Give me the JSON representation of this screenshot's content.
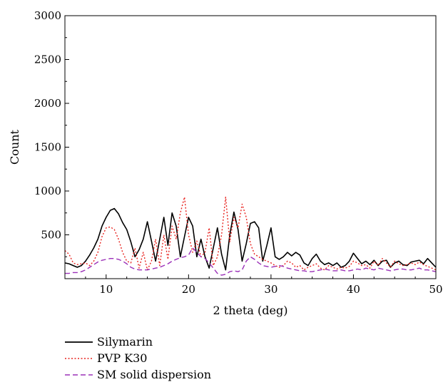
{
  "chart_data": {
    "type": "line",
    "xlabel": "2 theta (deg)",
    "ylabel": "Count",
    "xlim": [
      5,
      50
    ],
    "ylim": [
      0,
      3000
    ],
    "x_ticks": [
      10,
      20,
      30,
      40,
      50
    ],
    "y_ticks": [
      500,
      1000,
      1500,
      2000,
      2500,
      3000
    ],
    "x_tick_labels": [
      "10",
      "20",
      "30",
      "40",
      "50"
    ],
    "y_tick_labels": [
      "500",
      "1000",
      "1500",
      "2000",
      "2500",
      "3000"
    ],
    "grid": false,
    "legend_position": "bottom-left, below plot",
    "series": [
      {
        "name": "Silymarin",
        "color": "#000000",
        "dash": "solid",
        "x": [
          5,
          5.5,
          6,
          6.5,
          7,
          7.5,
          8,
          8.5,
          9,
          9.5,
          10,
          10.5,
          11,
          11.5,
          12,
          12.5,
          13,
          13.5,
          14,
          14.5,
          15,
          15.5,
          16,
          16.5,
          17,
          17.5,
          18,
          18.5,
          19,
          19.5,
          20,
          20.5,
          21,
          21.5,
          22,
          22.5,
          23,
          23.5,
          24,
          24.5,
          25,
          25.5,
          26,
          26.5,
          27,
          27.5,
          28,
          28.5,
          29,
          29.5,
          30,
          30.5,
          31,
          31.5,
          32,
          32.5,
          33,
          33.5,
          34,
          34.5,
          35,
          35.5,
          36,
          36.5,
          37,
          37.5,
          38,
          38.5,
          39,
          39.5,
          40,
          40.5,
          41,
          41.5,
          42,
          42.5,
          43,
          43.5,
          44,
          44.5,
          45,
          45.5,
          46,
          46.5,
          47,
          47.5,
          48,
          48.5,
          49,
          49.5,
          50
        ],
        "y": [
          180,
          170,
          150,
          130,
          150,
          200,
          270,
          350,
          450,
          600,
          700,
          780,
          800,
          740,
          640,
          560,
          420,
          250,
          330,
          450,
          650,
          430,
          200,
          450,
          700,
          380,
          750,
          600,
          250,
          480,
          700,
          600,
          250,
          450,
          250,
          120,
          350,
          580,
          280,
          100,
          500,
          760,
          560,
          200,
          400,
          630,
          650,
          580,
          200,
          380,
          580,
          250,
          220,
          250,
          300,
          260,
          300,
          270,
          180,
          150,
          230,
          280,
          200,
          160,
          180,
          150,
          180,
          130,
          150,
          200,
          290,
          230,
          170,
          200,
          160,
          210,
          150,
          200,
          210,
          130,
          180,
          200,
          160,
          150,
          190,
          200,
          210,
          170,
          230,
          180,
          130
        ]
      },
      {
        "name": "PVP K30",
        "color": "#e8231f",
        "dash": "dotted",
        "x": [
          5,
          5.5,
          6,
          6.5,
          7,
          7.5,
          8,
          8.5,
          9,
          9.5,
          10,
          10.5,
          11,
          11.5,
          12,
          12.5,
          13,
          13.5,
          14,
          14.5,
          15,
          15.5,
          16,
          16.5,
          17,
          17.5,
          18,
          18.5,
          19,
          19.5,
          20,
          20.5,
          21,
          21.5,
          22,
          22.5,
          23,
          23.5,
          24,
          24.5,
          25,
          25.5,
          26,
          26.5,
          27,
          27.5,
          28,
          28.5,
          29,
          29.5,
          30,
          30.5,
          31,
          31.5,
          32,
          32.5,
          33,
          33.5,
          34,
          34.5,
          35,
          35.5,
          36,
          36.5,
          37,
          37.5,
          38,
          38.5,
          39,
          39.5,
          40,
          40.5,
          41,
          41.5,
          42,
          42.5,
          43,
          43.5,
          44,
          44.5,
          45,
          45.5,
          46,
          46.5,
          47,
          47.5,
          48,
          48.5,
          49,
          49.5,
          50
        ],
        "y": [
          320,
          280,
          180,
          160,
          170,
          180,
          150,
          200,
          300,
          480,
          580,
          590,
          560,
          450,
          300,
          200,
          180,
          350,
          120,
          300,
          100,
          200,
          450,
          150,
          500,
          220,
          600,
          450,
          750,
          930,
          500,
          300,
          430,
          250,
          300,
          580,
          150,
          250,
          500,
          930,
          420,
          700,
          580,
          850,
          700,
          400,
          280,
          250,
          220,
          200,
          180,
          150,
          130,
          150,
          200,
          180,
          130,
          150,
          100,
          130,
          150,
          170,
          120,
          100,
          150,
          130,
          110,
          130,
          120,
          140,
          200,
          180,
          150,
          160,
          120,
          200,
          150,
          230,
          180,
          130,
          200,
          170,
          150,
          160,
          180,
          160,
          190,
          160,
          140,
          120,
          100
        ]
      },
      {
        "name": "SM solid dispersion",
        "color": "#9b30b8",
        "dash": "dashed",
        "x": [
          5,
          5.5,
          6,
          6.5,
          7,
          7.5,
          8,
          8.5,
          9,
          9.5,
          10,
          10.5,
          11,
          11.5,
          12,
          12.5,
          13,
          13.5,
          14,
          14.5,
          15,
          15.5,
          16,
          16.5,
          17,
          17.5,
          18,
          18.5,
          19,
          19.5,
          20,
          20.5,
          21,
          21.5,
          22,
          22.5,
          23,
          23.5,
          24,
          24.5,
          25,
          25.5,
          26,
          26.5,
          27,
          27.5,
          28,
          28.5,
          29,
          29.5,
          30,
          30.5,
          31,
          31.5,
          32,
          32.5,
          33,
          33.5,
          34,
          34.5,
          35,
          35.5,
          36,
          36.5,
          37,
          37.5,
          38,
          38.5,
          39,
          39.5,
          40,
          40.5,
          41,
          41.5,
          42,
          42.5,
          43,
          43.5,
          44,
          44.5,
          45,
          45.5,
          46,
          46.5,
          47,
          47.5,
          48,
          48.5,
          49,
          49.5,
          50
        ],
        "y": [
          60,
          60,
          70,
          70,
          80,
          100,
          130,
          160,
          190,
          210,
          220,
          230,
          230,
          220,
          200,
          170,
          130,
          110,
          100,
          100,
          100,
          110,
          120,
          130,
          150,
          170,
          200,
          220,
          240,
          250,
          270,
          350,
          300,
          250,
          230,
          180,
          120,
          60,
          40,
          50,
          80,
          90,
          80,
          100,
          200,
          250,
          220,
          180,
          150,
          140,
          130,
          140,
          150,
          140,
          120,
          110,
          100,
          90,
          90,
          80,
          80,
          90,
          100,
          110,
          100,
          90,
          90,
          100,
          90,
          90,
          100,
          110,
          100,
          120,
          110,
          100,
          120,
          110,
          100,
          90,
          100,
          110,
          110,
          100,
          100,
          110,
          120,
          100,
          100,
          90,
          80
        ]
      }
    ]
  }
}
